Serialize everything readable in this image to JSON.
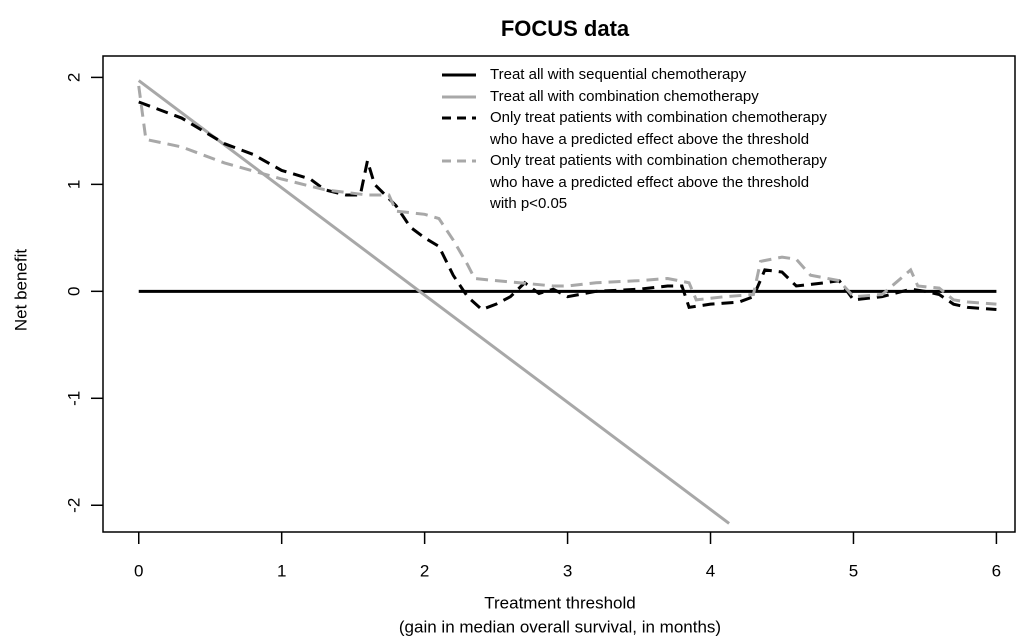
{
  "chart_data": {
    "type": "line",
    "title": "FOCUS data",
    "xlabel": [
      "Treatment threshold",
      "(gain in median overall survival, in months)"
    ],
    "ylabel": "Net benefit",
    "xlim": [
      -0.25,
      6.13
    ],
    "ylim": [
      -2.25,
      2.2
    ],
    "xticks": [
      0,
      1,
      2,
      3,
      4,
      5,
      6
    ],
    "yticks": [
      -2,
      -1,
      0,
      1,
      2
    ],
    "legend": "top-right",
    "series": [
      {
        "name": "Treat all with sequential chemotherapy",
        "color": "#000000",
        "dashed": false,
        "x": [
          0,
          6
        ],
        "values": [
          0,
          0
        ]
      },
      {
        "name": "Treat all with combination chemotherapy",
        "color": "#a8a8a8",
        "dashed": false,
        "x": [
          0,
          4.13
        ],
        "values": [
          1.97,
          -2.17
        ]
      },
      {
        "name": "Only treat patients with combination chemotherapy\nwho have a predicted effect above the threshold",
        "color": "#000000",
        "dashed": true,
        "x": [
          0,
          0.3,
          0.6,
          0.8,
          1.0,
          1.2,
          1.3,
          1.45,
          1.55,
          1.6,
          1.65,
          1.8,
          1.9,
          2.0,
          2.1,
          2.2,
          2.3,
          2.4,
          2.5,
          2.6,
          2.7,
          2.8,
          2.9,
          3.0,
          3.2,
          3.5,
          3.7,
          3.8,
          3.85,
          4.0,
          4.2,
          4.3,
          4.38,
          4.5,
          4.6,
          4.8,
          4.9,
          5.0,
          5.2,
          5.4,
          5.5,
          5.6,
          5.7,
          5.8,
          6.0
        ],
        "values": [
          1.77,
          1.62,
          1.38,
          1.28,
          1.13,
          1.05,
          0.95,
          0.9,
          0.9,
          1.22,
          1.0,
          0.8,
          0.6,
          0.5,
          0.42,
          0.15,
          -0.05,
          -0.17,
          -0.12,
          -0.05,
          0.08,
          -0.02,
          0.02,
          -0.05,
          0.0,
          0.02,
          0.05,
          0.05,
          -0.15,
          -0.12,
          -0.1,
          -0.05,
          0.2,
          0.18,
          0.05,
          0.08,
          0.1,
          -0.08,
          -0.05,
          0.02,
          0.0,
          -0.03,
          -0.12,
          -0.15,
          -0.17
        ]
      },
      {
        "name": "Only treat patients with combination chemotherapy\nwho have a predicted effect above the threshold\nwith p<0.05",
        "color": "#a8a8a8",
        "dashed": true,
        "x": [
          0,
          0.05,
          0.3,
          0.6,
          1.0,
          1.3,
          1.6,
          1.75,
          1.8,
          2.0,
          2.1,
          2.2,
          2.3,
          2.35,
          2.5,
          2.9,
          3.0,
          3.2,
          3.5,
          3.7,
          3.85,
          3.9,
          4.1,
          4.3,
          4.35,
          4.5,
          4.6,
          4.7,
          4.9,
          5.0,
          5.2,
          5.4,
          5.45,
          5.6,
          5.7,
          5.8,
          6.0
        ],
        "values": [
          1.92,
          1.42,
          1.35,
          1.2,
          1.05,
          0.95,
          0.9,
          0.9,
          0.75,
          0.72,
          0.68,
          0.48,
          0.25,
          0.12,
          0.1,
          0.05,
          0.05,
          0.08,
          0.1,
          0.12,
          0.08,
          -0.08,
          -0.05,
          -0.03,
          0.28,
          0.32,
          0.3,
          0.15,
          0.1,
          -0.05,
          -0.03,
          0.2,
          0.05,
          0.03,
          -0.08,
          -0.1,
          -0.12
        ]
      }
    ]
  }
}
